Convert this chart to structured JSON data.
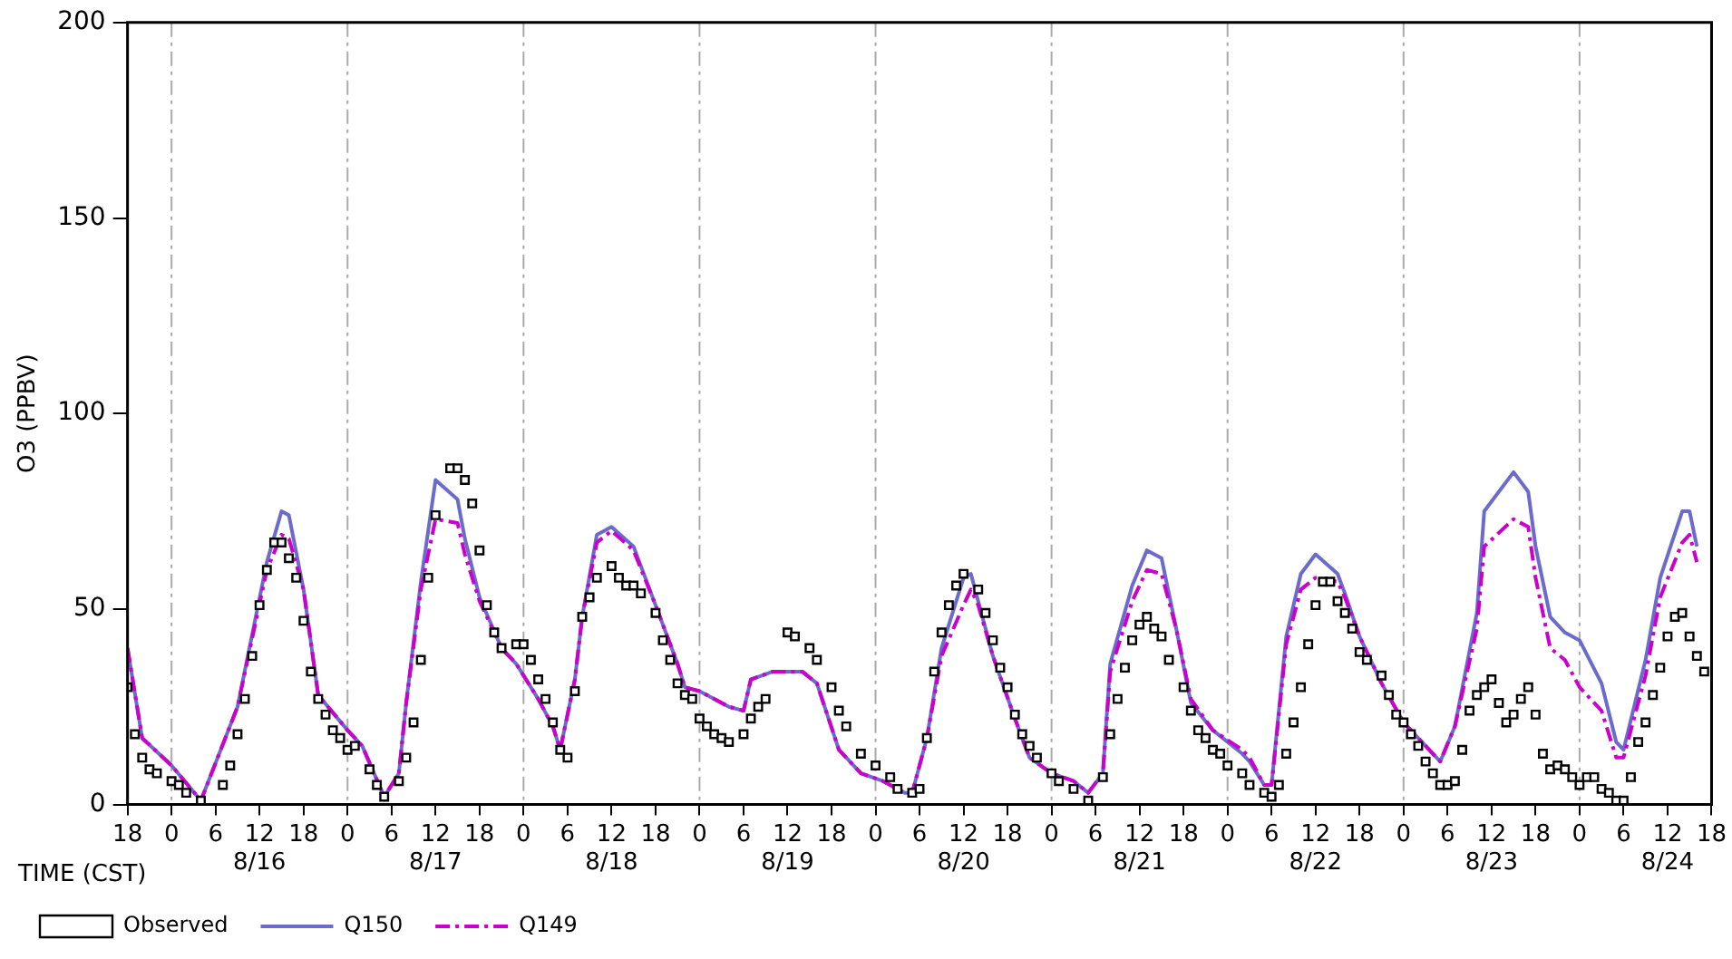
{
  "chart_data": {
    "type": "line",
    "xlabel": "TIME (CST)",
    "ylabel": "O3 (PPBV)",
    "xlim": [
      "--08-15T18:00",
      "--08-24T18:00"
    ],
    "ylim": [
      0,
      200
    ],
    "yticks": [
      0,
      50,
      100,
      150,
      200
    ],
    "xticks": [
      {
        "value": "--08-15T18:00",
        "label": "18"
      },
      {
        "value": "--08-16T00:00",
        "label": "0"
      },
      {
        "value": "--08-16T06:00",
        "label": "6"
      },
      {
        "value": "--08-16T12:00",
        "label": "12\n8/16"
      },
      {
        "value": "--08-16T18:00",
        "label": "18"
      },
      {
        "value": "--08-17T00:00",
        "label": "0"
      },
      {
        "value": "--08-17T06:00",
        "label": "6"
      },
      {
        "value": "--08-17T12:00",
        "label": "12\n8/17"
      },
      {
        "value": "--08-17T18:00",
        "label": "18"
      },
      {
        "value": "--08-18T00:00",
        "label": "0"
      },
      {
        "value": "--08-18T06:00",
        "label": "6"
      },
      {
        "value": "--08-18T12:00",
        "label": "12\n8/18"
      },
      {
        "value": "--08-18T18:00",
        "label": "18"
      },
      {
        "value": "--08-19T00:00",
        "label": "0"
      },
      {
        "value": "--08-19T06:00",
        "label": "6"
      },
      {
        "value": "--08-19T12:00",
        "label": "12\n8/19"
      },
      {
        "value": "--08-19T18:00",
        "label": "18"
      },
      {
        "value": "--08-20T00:00",
        "label": "0"
      },
      {
        "value": "--08-20T06:00",
        "label": "6"
      },
      {
        "value": "--08-20T12:00",
        "label": "12\n8/20"
      },
      {
        "value": "--08-20T18:00",
        "label": "18"
      },
      {
        "value": "--08-21T00:00",
        "label": "0"
      },
      {
        "value": "--08-21T06:00",
        "label": "6"
      },
      {
        "value": "--08-21T12:00",
        "label": "12\n8/21"
      },
      {
        "value": "--08-21T18:00",
        "label": "18"
      },
      {
        "value": "--08-22T00:00",
        "label": "0"
      },
      {
        "value": "--08-22T06:00",
        "label": "6"
      },
      {
        "value": "--08-22T12:00",
        "label": "12\n8/22"
      },
      {
        "value": "--08-22T18:00",
        "label": "18"
      },
      {
        "value": "--08-23T00:00",
        "label": "0"
      },
      {
        "value": "--08-23T06:00",
        "label": "6"
      },
      {
        "value": "--08-23T12:00",
        "label": "12\n8/23"
      },
      {
        "value": "--08-23T18:00",
        "label": "18"
      },
      {
        "value": "--08-24T00:00",
        "label": "0"
      },
      {
        "value": "--08-24T06:00",
        "label": "6"
      },
      {
        "value": "--08-24T12:00",
        "label": "12\n8/24"
      },
      {
        "value": "--08-24T18:00",
        "label": "18"
      }
    ],
    "ref_lines": [
      {
        "axis": "x",
        "value": "--08-16T00:00",
        "color": "#aaaaaa",
        "line_style": "dashed"
      },
      {
        "axis": "x",
        "value": "--08-17T00:00",
        "color": "#aaaaaa",
        "line_style": "dashed"
      },
      {
        "axis": "x",
        "value": "--08-18T00:00",
        "color": "#aaaaaa",
        "line_style": "dashed"
      },
      {
        "axis": "x",
        "value": "--08-19T00:00",
        "color": "#aaaaaa",
        "line_style": "dashed"
      },
      {
        "axis": "x",
        "value": "--08-20T00:00",
        "color": "#aaaaaa",
        "line_style": "dashed"
      },
      {
        "axis": "x",
        "value": "--08-21T00:00",
        "color": "#aaaaaa",
        "line_style": "dashed"
      },
      {
        "axis": "x",
        "value": "--08-22T00:00",
        "color": "#aaaaaa",
        "line_style": "dashed"
      },
      {
        "axis": "x",
        "value": "--08-23T00:00",
        "color": "#aaaaaa",
        "line_style": "dashed"
      },
      {
        "axis": "x",
        "value": "--08-24T00:00",
        "color": "#aaaaaa",
        "line_style": "dashed"
      }
    ],
    "legend": "bottom",
    "series": [
      {
        "name": "Observed",
        "type": "scatter",
        "marker": "square",
        "color": "#000000",
        "x": [
          "--08-15T18:00",
          "--08-15T19:00",
          "--08-15T20:00",
          "--08-15T21:00",
          "--08-15T22:00",
          "--08-16T00:00",
          "--08-16T01:00",
          "--08-16T02:00",
          "--08-16T04:00",
          "--08-16T07:00",
          "--08-16T08:00",
          "--08-16T09:00",
          "--08-16T10:00",
          "--08-16T11:00",
          "--08-16T12:00",
          "--08-16T13:00",
          "--08-16T14:00",
          "--08-16T15:00",
          "--08-16T16:00",
          "--08-16T17:00",
          "--08-16T18:00",
          "--08-16T19:00",
          "--08-16T20:00",
          "--08-16T21:00",
          "--08-16T22:00",
          "--08-16T23:00",
          "--08-17T00:00",
          "--08-17T01:00",
          "--08-17T03:00",
          "--08-17T04:00",
          "--08-17T05:00",
          "--08-17T07:00",
          "--08-17T08:00",
          "--08-17T09:00",
          "--08-17T10:00",
          "--08-17T11:00",
          "--08-17T12:00",
          "--08-17T14:00",
          "--08-17T15:00",
          "--08-17T16:00",
          "--08-17T17:00",
          "--08-17T18:00",
          "--08-17T19:00",
          "--08-17T20:00",
          "--08-17T21:00",
          "--08-17T23:00",
          "--08-18T00:00",
          "--08-18T01:00",
          "--08-18T02:00",
          "--08-18T03:00",
          "--08-18T04:00",
          "--08-18T05:00",
          "--08-18T06:00",
          "--08-18T07:00",
          "--08-18T08:00",
          "--08-18T09:00",
          "--08-18T10:00",
          "--08-18T12:00",
          "--08-18T13:00",
          "--08-18T14:00",
          "--08-18T15:00",
          "--08-18T16:00",
          "--08-18T18:00",
          "--08-18T19:00",
          "--08-18T20:00",
          "--08-18T21:00",
          "--08-18T22:00",
          "--08-18T23:00",
          "--08-19T00:00",
          "--08-19T01:00",
          "--08-19T02:00",
          "--08-19T03:00",
          "--08-19T04:00",
          "--08-19T06:00",
          "--08-19T07:00",
          "--08-19T08:00",
          "--08-19T09:00",
          "--08-19T12:00",
          "--08-19T13:00",
          "--08-19T15:00",
          "--08-19T16:00",
          "--08-19T18:00",
          "--08-19T19:00",
          "--08-19T20:00",
          "--08-19T22:00",
          "--08-20T00:00",
          "--08-20T02:00",
          "--08-20T03:00",
          "--08-20T05:00",
          "--08-20T06:00",
          "--08-20T07:00",
          "--08-20T08:00",
          "--08-20T09:00",
          "--08-20T10:00",
          "--08-20T11:00",
          "--08-20T12:00",
          "--08-20T14:00",
          "--08-20T15:00",
          "--08-20T16:00",
          "--08-20T17:00",
          "--08-20T18:00",
          "--08-20T19:00",
          "--08-20T20:00",
          "--08-20T21:00",
          "--08-20T22:00",
          "--08-21T00:00",
          "--08-21T01:00",
          "--08-21T03:00",
          "--08-21T05:00",
          "--08-21T07:00",
          "--08-21T08:00",
          "--08-21T09:00",
          "--08-21T10:00",
          "--08-21T11:00",
          "--08-21T12:00",
          "--08-21T13:00",
          "--08-21T14:00",
          "--08-21T15:00",
          "--08-21T16:00",
          "--08-21T18:00",
          "--08-21T19:00",
          "--08-21T20:00",
          "--08-21T21:00",
          "--08-21T22:00",
          "--08-21T23:00",
          "--08-22T00:00",
          "--08-22T02:00",
          "--08-22T03:00",
          "--08-22T05:00",
          "--08-22T06:00",
          "--08-22T07:00",
          "--08-22T08:00",
          "--08-22T09:00",
          "--08-22T10:00",
          "--08-22T11:00",
          "--08-22T12:00",
          "--08-22T13:00",
          "--08-22T14:00",
          "--08-22T15:00",
          "--08-22T16:00",
          "--08-22T17:00",
          "--08-22T18:00",
          "--08-22T19:00",
          "--08-22T21:00",
          "--08-22T22:00",
          "--08-22T23:00",
          "--08-23T00:00",
          "--08-23T01:00",
          "--08-23T02:00",
          "--08-23T03:00",
          "--08-23T04:00",
          "--08-23T05:00",
          "--08-23T06:00",
          "--08-23T07:00",
          "--08-23T08:00",
          "--08-23T09:00",
          "--08-23T10:00",
          "--08-23T11:00",
          "--08-23T12:00",
          "--08-23T13:00",
          "--08-23T14:00",
          "--08-23T15:00",
          "--08-23T16:00",
          "--08-23T17:00",
          "--08-23T18:00",
          "--08-23T19:00",
          "--08-23T20:00",
          "--08-23T21:00",
          "--08-23T22:00",
          "--08-23T23:00",
          "--08-24T00:00",
          "--08-24T01:00",
          "--08-24T02:00",
          "--08-24T03:00",
          "--08-24T04:00",
          "--08-24T05:00",
          "--08-24T06:00",
          "--08-24T07:00",
          "--08-24T08:00",
          "--08-24T09:00",
          "--08-24T10:00",
          "--08-24T11:00",
          "--08-24T12:00",
          "--08-24T13:00",
          "--08-24T14:00",
          "--08-24T15:00",
          "--08-24T16:00",
          "--08-24T17:00"
        ],
        "values": [
          30,
          18,
          12,
          9,
          8,
          6,
          5,
          3,
          1,
          5,
          10,
          18,
          27,
          38,
          51,
          60,
          67,
          67,
          63,
          58,
          47,
          34,
          27,
          23,
          19,
          17,
          14,
          15,
          9,
          5,
          2,
          6,
          12,
          21,
          37,
          58,
          74,
          86,
          86,
          83,
          77,
          65,
          51,
          44,
          40,
          41,
          41,
          37,
          32,
          27,
          21,
          14,
          12,
          29,
          48,
          53,
          58,
          61,
          58,
          56,
          56,
          54,
          49,
          42,
          37,
          31,
          28,
          27,
          22,
          20,
          18,
          17,
          16,
          18,
          22,
          25,
          27,
          44,
          43,
          40,
          37,
          30,
          24,
          20,
          13,
          10,
          7,
          4,
          3,
          4,
          17,
          34,
          44,
          51,
          56,
          59,
          55,
          49,
          42,
          35,
          30,
          23,
          18,
          15,
          12,
          8,
          6,
          4,
          1,
          7,
          18,
          27,
          35,
          42,
          46,
          48,
          45,
          43,
          37,
          30,
          24,
          19,
          17,
          14,
          13,
          10,
          8,
          5,
          3,
          2,
          5,
          13,
          21,
          30,
          41,
          51,
          57,
          57,
          52,
          49,
          45,
          39,
          37,
          33,
          28,
          23,
          21,
          18,
          15,
          11,
          8,
          5,
          5,
          6,
          14,
          24,
          28,
          30,
          32,
          26,
          21,
          23,
          27,
          30,
          23,
          13,
          9,
          10,
          9,
          7,
          5,
          7,
          7,
          4,
          3,
          1,
          1,
          7,
          16,
          21,
          28,
          35,
          43,
          48,
          49,
          43,
          38,
          34
        ]
      },
      {
        "name": "Q150",
        "marker": "none",
        "line_style": "solid",
        "color": "#6b6bcc",
        "x": [
          "--08-15T18:00",
          "--08-15T20:00",
          "--08-16T00:00",
          "--08-16T04:00",
          "--08-16T09:00",
          "--08-16T13:00",
          "--08-16T15:00",
          "--08-16T16:00",
          "--08-16T18:00",
          "--08-16T20:00",
          "--08-17T00:00",
          "--08-17T02:00",
          "--08-17T05:00",
          "--08-17T07:00",
          "--08-17T08:00",
          "--08-17T10:00",
          "--08-17T12:00",
          "--08-17T15:00",
          "--08-17T16:00",
          "--08-17T18:00",
          "--08-17T21:00",
          "--08-17T23:00",
          "--08-18T02:00",
          "--08-18T04:00",
          "--08-18T05:00",
          "--08-18T07:00",
          "--08-18T08:00",
          "--08-18T10:00",
          "--08-18T12:00",
          "--08-18T15:00",
          "--08-18T18:00",
          "--08-18T21:00",
          "--08-18T22:00",
          "--08-19T00:00",
          "--08-19T04:00",
          "--08-19T06:00",
          "--08-19T07:00",
          "--08-19T10:00",
          "--08-19T14:00",
          "--08-19T16:00",
          "--08-19T19:00",
          "--08-19T22:00",
          "--08-20T01:00",
          "--08-20T04:00",
          "--08-20T05:00",
          "--08-20T07:00",
          "--08-20T09:00",
          "--08-20T12:00",
          "--08-20T13:00",
          "--08-20T14:00",
          "--08-20T16:00",
          "--08-20T19:00",
          "--08-20T21:00",
          "--08-21T00:00",
          "--08-21T03:00",
          "--08-21T05:00",
          "--08-21T07:00",
          "--08-21T08:00",
          "--08-21T11:00",
          "--08-21T13:00",
          "--08-21T15:00",
          "--08-21T17:00",
          "--08-21T19:00",
          "--08-21T22:00",
          "--08-22T02:00",
          "--08-22T03:00",
          "--08-22T05:00",
          "--08-22T06:00",
          "--08-22T08:00",
          "--08-22T10:00",
          "--08-22T12:00",
          "--08-22T15:00",
          "--08-22T16:00",
          "--08-22T18:00",
          "--08-22T21:00",
          "--08-23T00:00",
          "--08-23T03:00",
          "--08-23T05:00",
          "--08-23T07:00",
          "--08-23T10:00",
          "--08-23T11:00",
          "--08-23T15:00",
          "--08-23T17:00",
          "--08-23T18:00",
          "--08-23T20:00",
          "--08-23T22:00",
          "--08-24T00:00",
          "--08-24T03:00",
          "--08-24T05:00",
          "--08-24T06:00",
          "--08-24T09:00",
          "--08-24T11:00",
          "--08-24T14:00",
          "--08-24T15:00",
          "--08-24T16:00"
        ],
        "values": [
          40,
          17,
          10,
          1,
          25,
          62,
          75,
          74,
          55,
          28,
          19,
          15,
          2,
          8,
          26,
          57,
          83,
          78,
          68,
          53,
          40,
          36,
          27,
          20,
          14,
          32,
          48,
          69,
          71,
          66,
          51,
          36,
          30,
          29,
          25,
          24,
          32,
          34,
          34,
          31,
          14,
          8,
          6,
          3,
          3,
          17,
          40,
          58,
          59,
          52,
          38,
          22,
          12,
          8,
          6,
          3,
          8,
          36,
          56,
          65,
          63,
          45,
          26,
          19,
          13,
          11,
          5,
          5,
          43,
          59,
          64,
          59,
          54,
          43,
          31,
          21,
          15,
          11,
          20,
          49,
          75,
          85,
          80,
          66,
          48,
          44,
          42,
          31,
          16,
          14,
          37,
          58,
          75,
          75,
          66
        ]
      },
      {
        "name": "Q149",
        "marker": "none",
        "line_style": "dashed",
        "color": "#cc00cc",
        "x": [
          "--08-15T18:00",
          "--08-15T20:00",
          "--08-16T00:00",
          "--08-16T04:00",
          "--08-16T09:00",
          "--08-16T13:00",
          "--08-16T15:00",
          "--08-16T16:00",
          "--08-16T18:00",
          "--08-16T20:00",
          "--08-17T00:00",
          "--08-17T02:00",
          "--08-17T05:00",
          "--08-17T07:00",
          "--08-17T08:00",
          "--08-17T10:00",
          "--08-17T12:00",
          "--08-17T15:00",
          "--08-17T16:00",
          "--08-17T18:00",
          "--08-17T21:00",
          "--08-17T23:00",
          "--08-18T02:00",
          "--08-18T04:00",
          "--08-18T05:00",
          "--08-18T07:00",
          "--08-18T08:00",
          "--08-18T10:00",
          "--08-18T12:00",
          "--08-18T15:00",
          "--08-18T18:00",
          "--08-18T21:00",
          "--08-18T22:00",
          "--08-19T00:00",
          "--08-19T04:00",
          "--08-19T06:00",
          "--08-19T07:00",
          "--08-19T10:00",
          "--08-19T14:00",
          "--08-19T16:00",
          "--08-19T19:00",
          "--08-19T22:00",
          "--08-20T01:00",
          "--08-20T04:00",
          "--08-20T05:00",
          "--08-20T07:00",
          "--08-20T09:00",
          "--08-20T12:00",
          "--08-20T13:00",
          "--08-20T14:00",
          "--08-20T16:00",
          "--08-20T19:00",
          "--08-20T21:00",
          "--08-21T00:00",
          "--08-21T03:00",
          "--08-21T05:00",
          "--08-21T07:00",
          "--08-21T08:00",
          "--08-21T11:00",
          "--08-21T13:00",
          "--08-21T15:00",
          "--08-21T17:00",
          "--08-21T19:00",
          "--08-21T22:00",
          "--08-22T02:00",
          "--08-22T03:00",
          "--08-22T05:00",
          "--08-22T06:00",
          "--08-22T08:00",
          "--08-22T10:00",
          "--08-22T12:00",
          "--08-22T15:00",
          "--08-22T16:00",
          "--08-22T18:00",
          "--08-22T21:00",
          "--08-23T00:00",
          "--08-23T03:00",
          "--08-23T05:00",
          "--08-23T07:00",
          "--08-23T10:00",
          "--08-23T11:00",
          "--08-23T15:00",
          "--08-23T17:00",
          "--08-23T18:00",
          "--08-23T20:00",
          "--08-23T22:00",
          "--08-24T00:00",
          "--08-24T03:00",
          "--08-24T05:00",
          "--08-24T06:00",
          "--08-24T09:00",
          "--08-24T11:00",
          "--08-24T14:00",
          "--08-24T15:00",
          "--08-24T16:00"
        ],
        "values": [
          40,
          17,
          10,
          1,
          25,
          60,
          69,
          68,
          55,
          28,
          19,
          15,
          2,
          8,
          26,
          55,
          73,
          72,
          64,
          52,
          40,
          36,
          27,
          20,
          14,
          32,
          48,
          67,
          70,
          65,
          51,
          36,
          30,
          29,
          25,
          24,
          32,
          34,
          34,
          31,
          14,
          8,
          6,
          3,
          3,
          17,
          38,
          51,
          55,
          51,
          38,
          22,
          12,
          8,
          6,
          3,
          8,
          34,
          52,
          60,
          59,
          45,
          27,
          19,
          14,
          12,
          5,
          5,
          41,
          55,
          58,
          57,
          53,
          43,
          31,
          21,
          15,
          11,
          20,
          45,
          66,
          73,
          71,
          58,
          40,
          37,
          30,
          24,
          12,
          12,
          33,
          53,
          67,
          69,
          62
        ]
      }
    ]
  }
}
